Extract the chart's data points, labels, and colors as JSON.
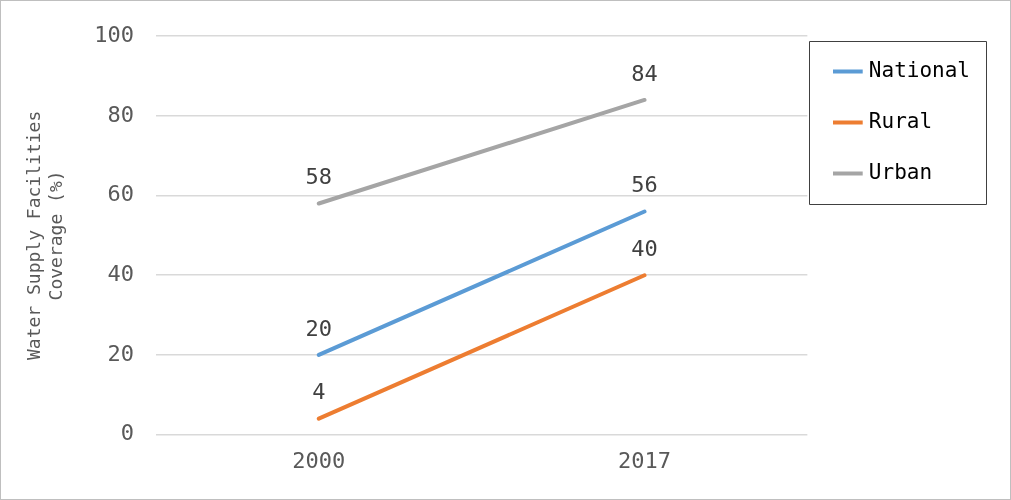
{
  "chart_data": {
    "type": "line",
    "ylabel": "Water Supply Facilities Coverage (%)",
    "categories": [
      "2000",
      "2017"
    ],
    "series": [
      {
        "name": "National",
        "color": "#5b9bd5",
        "values": [
          20,
          56
        ]
      },
      {
        "name": "Rural",
        "color": "#ed7d31",
        "values": [
          4,
          40
        ]
      },
      {
        "name": "Urban",
        "color": "#a5a5a5",
        "values": [
          58,
          84
        ]
      }
    ],
    "ylim": [
      0,
      100
    ],
    "yticks": [
      0,
      20,
      40,
      60,
      80,
      100
    ],
    "grid": "y",
    "legend": "right",
    "marker": "none",
    "line_style": "solid",
    "data_labels": true
  }
}
